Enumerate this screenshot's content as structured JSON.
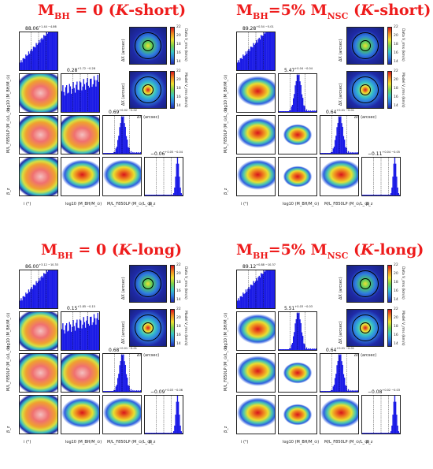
{
  "panels": [
    {
      "title": "M_BH = 0 (K-short)",
      "title_main": "M",
      "title_sub": "BH",
      "title_rest": " = 0 (",
      "title_italic": "K",
      "title_tail": "-short)",
      "stat_i": "88.06",
      "stat_i_pm": "+1.44 −4.86",
      "stat_mbh": "0.28",
      "stat_mbh_pm": "+2.72 −0.28",
      "stat_ml": "0.69",
      "stat_ml_pm": "+0.02 −0.02",
      "stat_beta": "−0.06",
      "stat_beta_pm": "+0.05 −0.04",
      "ylab_mbh": "log10 (M_BH/M_⊙)",
      "ylab_ml": "M/L_F850LP (M_⊙/L_⊙)",
      "ylab_beta": "β_z",
      "xlab_i": "i (°)",
      "xlab_mbh": "log10 (M_BH/M_⊙)",
      "xlab_ml": "M/L_F850LP (M_⊙/L_⊙)",
      "xlab_beta": "β_z",
      "map_data_label": "Data V_rms (km/s)",
      "map_model_label": "Model V_rms (km/s)",
      "map_x": "ΔX (arcsec)",
      "map_y": "ΔY (arcsec)",
      "cbar_ticks": [
        "22",
        "20",
        "18",
        "16",
        "14"
      ]
    },
    {
      "title": "M_BH=5% M_NSC (K-short)",
      "title_main": "M",
      "title_sub": "BH",
      "title_rest": "=5% M",
      "title_sub2": "NSC",
      "title_italic": "K",
      "title_tail": "-short)",
      "stat_i": "89.28",
      "stat_i_pm": "+0.54 −5.01",
      "stat_mbh": "5.47",
      "stat_mbh_pm": "+0.04 −0.04",
      "stat_ml": "0.64",
      "stat_ml_pm": "+0.01 −0.01",
      "stat_beta": "−0.11",
      "stat_beta_pm": "+0.04 −0.05",
      "ylab_mbh": "log10 (M_BH/M_⊙)",
      "ylab_ml": "M/L_F850LP (M_⊙/L_⊙)",
      "ylab_beta": "β_z",
      "xlab_i": "i (°)",
      "xlab_mbh": "log10 (M_BH/M_⊙)",
      "xlab_ml": "M/L_F850LP (M_⊙/L_⊙)",
      "xlab_beta": "β_z",
      "map_data_label": "Data V_rms (km/s)",
      "map_model_label": "Model V_rms (km/s)",
      "map_x": "ΔX (arcsec)",
      "map_y": "ΔY (arcsec)",
      "cbar_ticks": [
        "22",
        "20",
        "18",
        "16",
        "14"
      ]
    },
    {
      "title": "M_BH = 0 (K-long)",
      "title_main": "M",
      "title_sub": "BH",
      "title_rest": " = 0 (",
      "title_italic": "K",
      "title_tail": "-long)",
      "stat_i": "86.00",
      "stat_i_pm": "+3.12 −10.33",
      "stat_mbh": "0.15",
      "stat_mbh_pm": "+2.85 −0.15",
      "stat_ml": "0.68",
      "stat_ml_pm": "+0.01 −0.01",
      "stat_beta": "−0.09",
      "stat_beta_pm": "+0.03 −0.06",
      "ylab_mbh": "log10 (M_BH/M_⊙)",
      "ylab_ml": "M/L_F850LP (M_⊙/L_⊙)",
      "ylab_beta": "β_z",
      "xlab_i": "i (°)",
      "xlab_mbh": "log10 (M_BH/M_⊙)",
      "xlab_ml": "M/L_F850LP (M_⊙/L_⊙)",
      "xlab_beta": "β_z",
      "map_data_label": "Data V_rms (km/s)",
      "map_model_label": "Model V_rms (km/s)",
      "map_x": "ΔX (arcsec)",
      "map_y": "ΔY (arcsec)",
      "cbar_ticks": [
        "22",
        "20",
        "18",
        "16",
        "14"
      ]
    },
    {
      "title": "M_BH=5% M_NSC (K-long)",
      "title_main": "M",
      "title_sub": "BH",
      "title_rest": "=5% M",
      "title_sub2": "NSC",
      "title_italic": "K",
      "title_tail": "-long)",
      "stat_i": "89.12",
      "stat_i_pm": "+0.88 −10.37",
      "stat_mbh": "5.51",
      "stat_mbh_pm": "+0.03 −0.03",
      "stat_ml": "0.64",
      "stat_ml_pm": "+0.01 −0.01",
      "stat_beta": "−0.08",
      "stat_beta_pm": "+0.02 −0.03",
      "ylab_mbh": "log10 (M_BH/M_⊙)",
      "ylab_ml": "M/L_F850LP (M_⊙/L_⊙)",
      "ylab_beta": "β_z",
      "xlab_i": "i (°)",
      "xlab_mbh": "log10 (M_BH/M_⊙)",
      "xlab_ml": "M/L_F850LP (M_⊙/L_⊙)",
      "xlab_beta": "β_z",
      "map_data_label": "Data V_rms (km/s)",
      "map_model_label": "Model V_rms (km/s)",
      "map_x": "ΔX (arcsec)",
      "map_y": "ΔY (arcsec)",
      "cbar_ticks": [
        "22",
        "20",
        "18",
        "16",
        "14"
      ]
    }
  ],
  "colors": {
    "title": "#ee1c1c",
    "hist": "#1a1ae6",
    "dens_hi": "#d8141c",
    "dens_lo": "#1f2aa8"
  }
}
